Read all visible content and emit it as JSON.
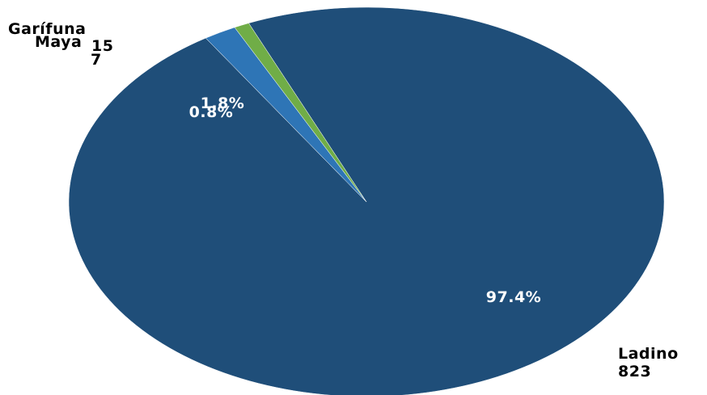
{
  "chart_data": {
    "type": "pie",
    "slices": [
      {
        "name": "Ladino",
        "value": 823,
        "percent_label": "97.4%",
        "color": "#1f4e79"
      },
      {
        "name": "Maya",
        "value": 15,
        "percent_label": "1.8%",
        "color": "#2e75b6"
      },
      {
        "name": "Garífuna",
        "value": 7,
        "percent_label": "0.8%",
        "color": "#70ad47"
      }
    ],
    "legend": "none",
    "data_labels": "percent inside, category and value outside"
  }
}
